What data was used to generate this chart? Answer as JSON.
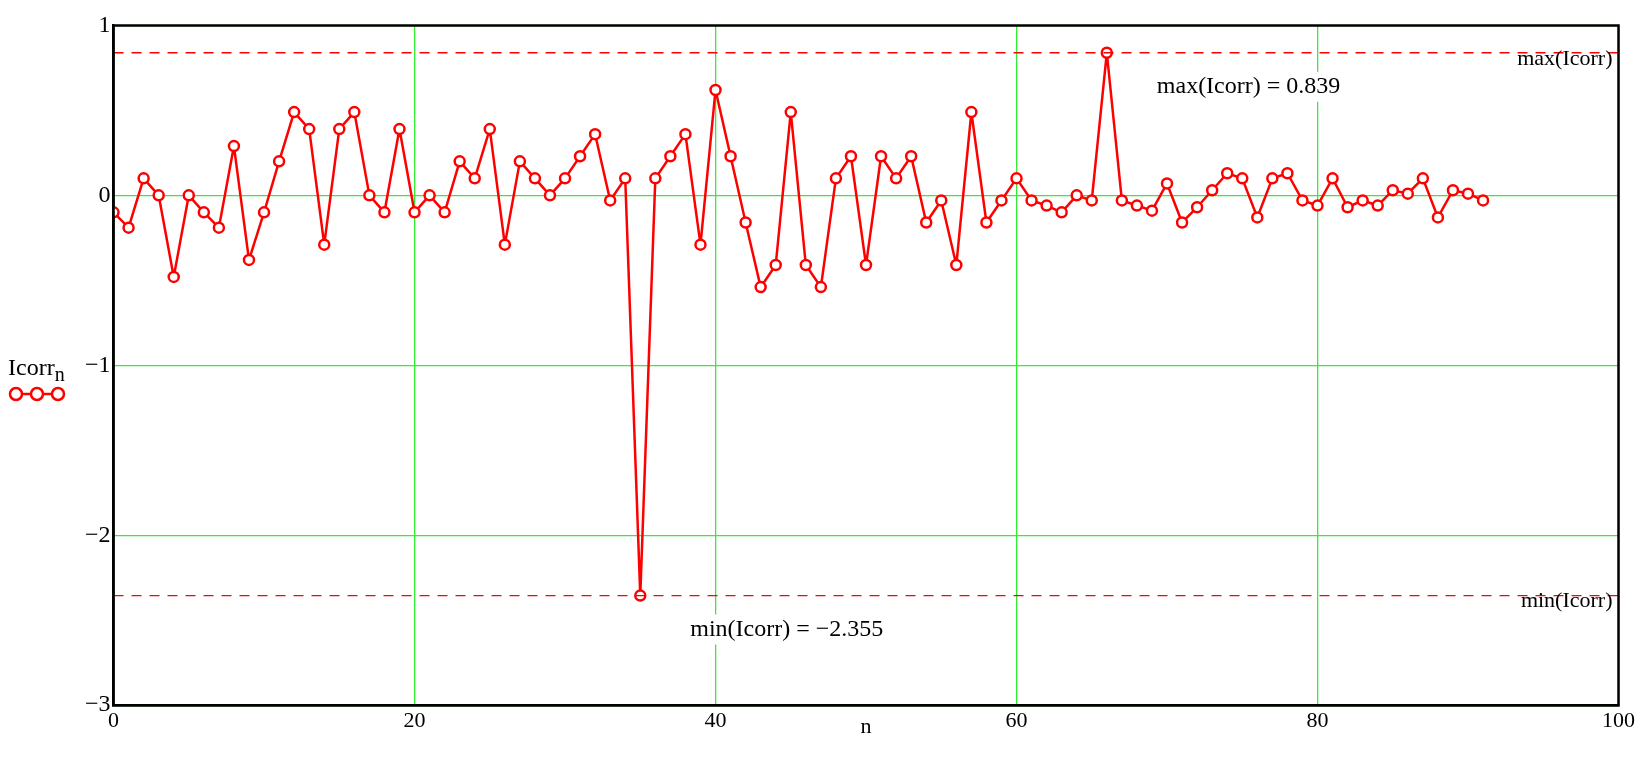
{
  "chart_data": {
    "type": "line",
    "xlabel": "n",
    "ylabel": "Icorr$_{n}$",
    "x": [
      0,
      1,
      2,
      3,
      4,
      5,
      6,
      7,
      8,
      9,
      10,
      11,
      12,
      13,
      14,
      15,
      16,
      17,
      18,
      19,
      20,
      21,
      22,
      23,
      24,
      25,
      26,
      27,
      28,
      29,
      30,
      31,
      32,
      33,
      34,
      35,
      36,
      37,
      38,
      39,
      40,
      41,
      42,
      43,
      44,
      45,
      46,
      47,
      48,
      49,
      50,
      51,
      52,
      53,
      54,
      55,
      56,
      57,
      58,
      59,
      60,
      61,
      62,
      63,
      64,
      65,
      66,
      67,
      68,
      69,
      70,
      71,
      72,
      73,
      74,
      75,
      76,
      77,
      78,
      79,
      80,
      81,
      82,
      83,
      84,
      85,
      86,
      87,
      88,
      89,
      90,
      91
    ],
    "series": [
      {
        "color": "#ff0000",
        "values": [
          -0.1,
          -0.19,
          0.1,
          0,
          -0.48,
          0,
          -0.1,
          -0.19,
          0.29,
          -0.38,
          -0.1,
          0.2,
          0.49,
          0.39,
          -0.29,
          0.39,
          0.49,
          0,
          -0.1,
          0.39,
          -0.1,
          0,
          -0.1,
          0.2,
          0.1,
          0.39,
          -0.29,
          0.2,
          0.1,
          0,
          0.1,
          0.23,
          0.36,
          -0.03,
          0.1,
          -2.355,
          0.1,
          0.23,
          0.36,
          -0.29,
          0.62,
          0.23,
          -0.16,
          -0.54,
          -0.41,
          0.49,
          -0.41,
          -0.54,
          0.1,
          0.23,
          -0.41,
          0.23,
          0.1,
          0.23,
          -0.16,
          -0.03,
          -0.41,
          0.49,
          -0.16,
          -0.03,
          0.1,
          -0.03,
          -0.06,
          -0.1,
          0,
          -0.03,
          0.839,
          -0.03,
          -0.06,
          -0.09,
          0.07,
          -0.16,
          -0.07,
          0.03,
          0.13,
          0.1,
          -0.13,
          0.1,
          0.13,
          -0.03,
          -0.06,
          0.1,
          -0.07,
          -0.03,
          -0.06,
          0.03,
          0.01,
          0.1,
          -0.13,
          0.03,
          0.01,
          -0.03
        ]
      }
    ],
    "xlim": [
      0,
      100
    ],
    "xticks": [
      0,
      20,
      40,
      60,
      80,
      100
    ],
    "ylim": [
      -3,
      1
    ],
    "yticks": [
      {
        "value": -3,
        "label": "−3"
      },
      {
        "value": -2,
        "label": "−2"
      },
      {
        "value": -1,
        "label": "−1"
      },
      0,
      1
    ],
    "grid": true,
    "marker": "circle",
    "line_style": "solid",
    "legend": false,
    "ref_lines": [
      {
        "axis": "y",
        "value": 0.839,
        "label": "max(Icorr)",
        "color": "#ff0000",
        "line_style": "dashed"
      },
      {
        "axis": "y",
        "value": -2.355,
        "label": "min(Icorr)",
        "color": "#ff0000",
        "line_style": "dashed"
      }
    ],
    "annotations": [
      {
        "text": "max(Icorr) = 0.839",
        "x": 66,
        "y": 0.839
      },
      {
        "text": "min(Icorr) = −2.355",
        "x": 35,
        "y": -2.355
      }
    ]
  }
}
